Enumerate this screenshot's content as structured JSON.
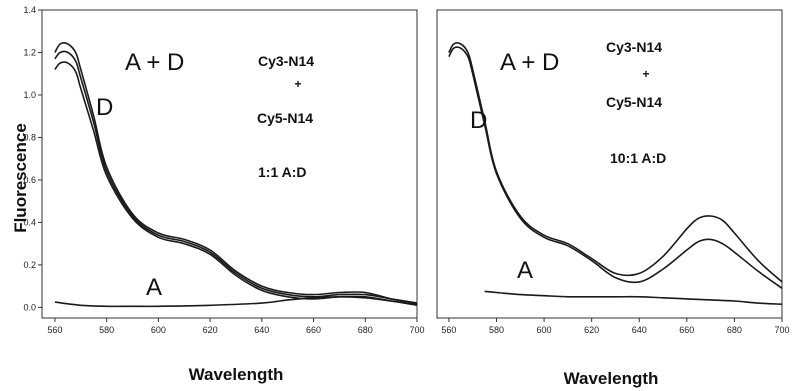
{
  "chart_data": [
    {
      "type": "line",
      "panel": "left",
      "xlabel": "Wavelength",
      "ylabel": "Fluorescence",
      "xlim": [
        555,
        700
      ],
      "ylim": [
        -0.05,
        1.4
      ],
      "xticks": [
        "560",
        "580",
        "600",
        "620",
        "640",
        "660",
        "680",
        "700"
      ],
      "yticks": [
        "0.0",
        "0.2",
        "0.4",
        "0.6",
        "0.8",
        "1.0",
        "1.2",
        "1.4"
      ],
      "annotations": [
        "A + D",
        "D",
        "A",
        "Cy3-N14",
        "+",
        "Cy5-N14",
        "1:1 A:D"
      ],
      "series": [
        {
          "x": [
            560,
            562,
            565,
            568,
            570,
            575,
            580,
            590,
            600,
            610,
            620,
            630,
            640,
            650,
            660,
            670,
            680,
            690,
            700
          ],
          "y": [
            1.2,
            1.24,
            1.24,
            1.2,
            1.12,
            0.9,
            0.66,
            0.44,
            0.35,
            0.32,
            0.27,
            0.17,
            0.1,
            0.07,
            0.06,
            0.07,
            0.07,
            0.04,
            0.02
          ]
        },
        {
          "x": [
            560,
            562,
            565,
            568,
            570,
            575,
            580,
            590,
            600,
            610,
            620,
            630,
            640,
            650,
            660,
            670,
            680,
            690,
            700
          ],
          "y": [
            1.17,
            1.2,
            1.2,
            1.16,
            1.08,
            0.87,
            0.64,
            0.43,
            0.34,
            0.31,
            0.26,
            0.16,
            0.09,
            0.06,
            0.05,
            0.06,
            0.06,
            0.04,
            0.02
          ]
        },
        {
          "x": [
            560,
            562,
            565,
            568,
            570,
            575,
            580,
            590,
            600,
            610,
            620,
            630,
            640,
            650,
            660,
            670,
            680,
            690,
            700
          ],
          "y": [
            1.12,
            1.15,
            1.15,
            1.11,
            1.03,
            0.83,
            0.62,
            0.42,
            0.33,
            0.3,
            0.25,
            0.15,
            0.08,
            0.05,
            0.04,
            0.05,
            0.05,
            0.03,
            0.01
          ]
        },
        {
          "x": [
            560,
            570,
            580,
            590,
            600,
            620,
            640,
            650,
            660,
            670,
            680,
            690,
            700
          ],
          "y": [
            0.025,
            0.01,
            0.005,
            0.005,
            0.005,
            0.01,
            0.02,
            0.035,
            0.045,
            0.05,
            0.045,
            0.03,
            0.015
          ]
        }
      ]
    },
    {
      "type": "line",
      "panel": "right",
      "xlabel": "Wavelength",
      "ylabel": "",
      "xlim": [
        555,
        700
      ],
      "ylim": [
        -0.05,
        1.4
      ],
      "xticks": [
        "560",
        "580",
        "600",
        "620",
        "640",
        "660",
        "680",
        "700"
      ],
      "yticks": [],
      "annotations": [
        "A + D",
        "D",
        "A",
        "Cy3-N14",
        "+",
        "Cy5-N14",
        "10:1 A:D"
      ],
      "series": [
        {
          "x": [
            560,
            562,
            565,
            568,
            570,
            575,
            580,
            590,
            600,
            610,
            620,
            630,
            640,
            650,
            660,
            665,
            670,
            675,
            680,
            690,
            700
          ],
          "y": [
            1.2,
            1.24,
            1.24,
            1.2,
            1.12,
            0.88,
            0.64,
            0.43,
            0.34,
            0.3,
            0.23,
            0.16,
            0.16,
            0.24,
            0.37,
            0.42,
            0.43,
            0.41,
            0.35,
            0.22,
            0.12
          ]
        },
        {
          "x": [
            560,
            562,
            565,
            568,
            570,
            575,
            580,
            590,
            600,
            610,
            620,
            630,
            640,
            650,
            660,
            665,
            670,
            675,
            680,
            690,
            700
          ],
          "y": [
            1.18,
            1.22,
            1.22,
            1.18,
            1.1,
            0.86,
            0.63,
            0.42,
            0.33,
            0.29,
            0.22,
            0.14,
            0.12,
            0.18,
            0.27,
            0.31,
            0.32,
            0.3,
            0.26,
            0.17,
            0.09
          ]
        },
        {
          "x": [
            575,
            580,
            590,
            600,
            610,
            620,
            630,
            640,
            650,
            660,
            670,
            680,
            690,
            700
          ],
          "y": [
            0.075,
            0.07,
            0.06,
            0.055,
            0.05,
            0.05,
            0.05,
            0.05,
            0.045,
            0.04,
            0.035,
            0.03,
            0.02,
            0.015
          ]
        }
      ]
    }
  ]
}
